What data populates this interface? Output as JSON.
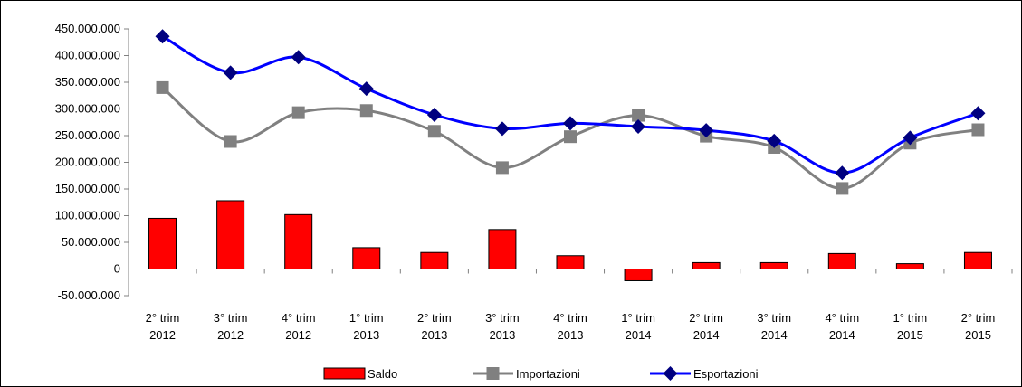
{
  "chart_data": {
    "type": "bar",
    "title": "",
    "xlabel": "",
    "ylabel": "",
    "ylim": [
      -50000000,
      450000000
    ],
    "ystep": 50000000,
    "yticks": [
      "450.000.000",
      "400.000.000",
      "350.000.000",
      "300.000.000",
      "250.000.000",
      "200.000.000",
      "150.000.000",
      "100.000.000",
      "50.000.000",
      "0",
      "-50.000.000"
    ],
    "categories": [
      [
        "2° trim",
        "2012"
      ],
      [
        "3° trim",
        "2012"
      ],
      [
        "4° trim",
        "2012"
      ],
      [
        "1° trim",
        "2013"
      ],
      [
        "2° trim",
        "2013"
      ],
      [
        "3° trim",
        "2013"
      ],
      [
        "4° trim",
        "2013"
      ],
      [
        "1° trim",
        "2014"
      ],
      [
        "2° trim",
        "2014"
      ],
      [
        "3° trim",
        "2014"
      ],
      [
        "4° trim",
        "2014"
      ],
      [
        "1° trim",
        "2015"
      ],
      [
        "2° trim",
        "2015"
      ]
    ],
    "series": [
      {
        "name": "Saldo",
        "kind": "bar",
        "color": "#ff0000",
        "values": [
          95000000,
          128000000,
          102000000,
          40000000,
          31000000,
          74000000,
          25000000,
          -22000000,
          12000000,
          12000000,
          29000000,
          10000000,
          31000000
        ]
      },
      {
        "name": "Importazioni",
        "kind": "line",
        "marker": "square",
        "color": "#808080",
        "values": [
          340000000,
          239000000,
          293000000,
          297000000,
          258000000,
          190000000,
          248000000,
          288000000,
          249000000,
          228000000,
          151000000,
          236000000,
          261000000
        ]
      },
      {
        "name": "Esportazioni",
        "kind": "line",
        "marker": "diamond",
        "color": "#0000ff",
        "marker_color": "#00007f",
        "values": [
          436000000,
          368000000,
          397000000,
          338000000,
          289000000,
          263000000,
          273000000,
          267000000,
          260000000,
          240000000,
          180000000,
          246000000,
          292000000
        ]
      }
    ],
    "legend_position": "bottom",
    "grid": false
  }
}
